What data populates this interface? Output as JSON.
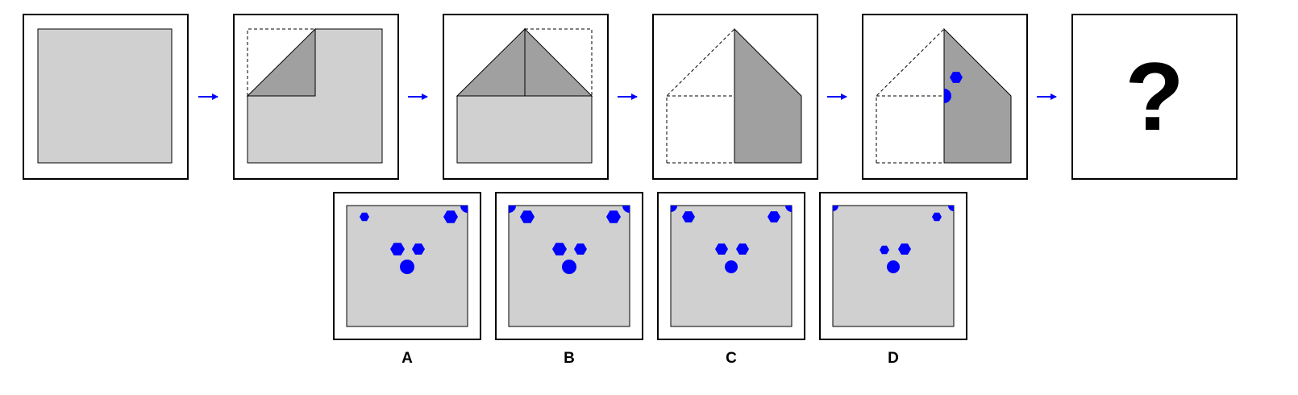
{
  "colors": {
    "paper": "#d0d0d0",
    "folded": "#a0a0a0",
    "hole": "#0000ff",
    "arrow": "#0000ff",
    "frame": "#000000"
  },
  "question_mark": "?",
  "sequence_steps": [
    {
      "name": "step-1-unfolded-sheet"
    },
    {
      "name": "step-2-top-left-corner-folded"
    },
    {
      "name": "step-3-top-right-corner-folded"
    },
    {
      "name": "step-4-left-half-folded"
    },
    {
      "name": "step-5-holes-punched"
    },
    {
      "name": "step-6-unknown"
    }
  ],
  "punched_holes": [
    "hexagon",
    "circle"
  ],
  "options": [
    {
      "label": "A",
      "holes": [
        "small-hexagon",
        "large-hexagon",
        "corner-quarter-circle",
        "large-hexagon",
        "hexagon",
        "circle"
      ]
    },
    {
      "label": "B",
      "holes": [
        "corner-quarter-circle",
        "large-hexagon",
        "large-hexagon",
        "corner-quarter-circle",
        "large-hexagon",
        "hexagon",
        "circle"
      ]
    },
    {
      "label": "C",
      "holes": [
        "corner-quarter-circle",
        "hexagon",
        "hexagon",
        "corner-quarter-circle",
        "hexagon",
        "hexagon",
        "circle"
      ]
    },
    {
      "label": "D",
      "holes": [
        "corner-quarter-circle",
        "small-hexagon",
        "corner-quarter-circle",
        "small-hexagon",
        "hexagon",
        "circle"
      ]
    }
  ]
}
